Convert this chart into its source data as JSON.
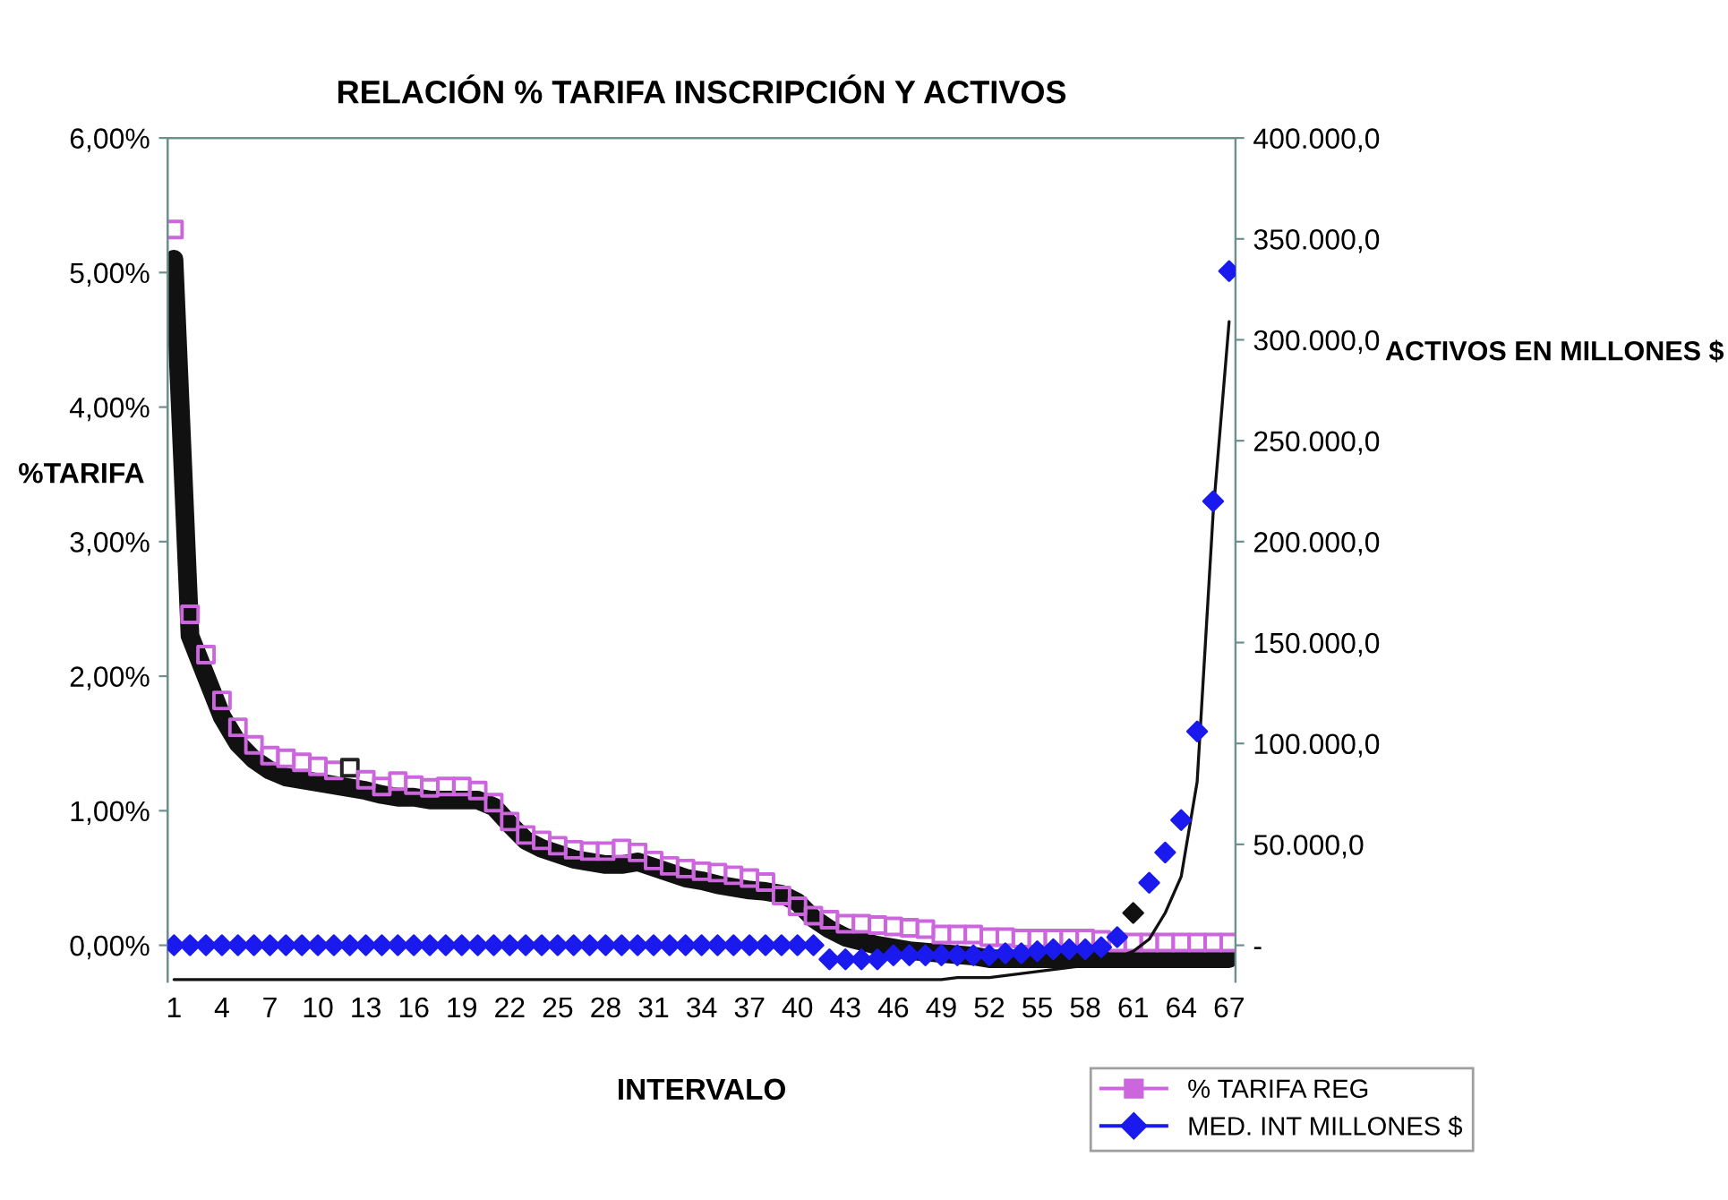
{
  "chart_data": {
    "type": "scatter",
    "title": "RELACIÓN % TARIFA INSCRIPCIÓN Y ACTIVOS",
    "xlabel": "INTERVALO",
    "ylabel": "%TARIFA",
    "y2label": "ACTIVOS EN MILLONES $",
    "categories": [
      "1",
      null,
      null,
      "4",
      null,
      null,
      "7",
      null,
      null,
      "10",
      null,
      null,
      "13",
      null,
      null,
      "16",
      null,
      null,
      "19",
      null,
      null,
      "22",
      null,
      null,
      "25",
      null,
      null,
      "28",
      null,
      null,
      "31",
      null,
      null,
      "34",
      null,
      null,
      "37",
      null,
      null,
      "40",
      null,
      null,
      "43",
      null,
      null,
      "46",
      null,
      null,
      "49",
      null,
      null,
      "52",
      null,
      null,
      "55",
      null,
      null,
      "58",
      null,
      null,
      "61",
      null,
      null,
      "64",
      null,
      null,
      "67"
    ],
    "ylim": [
      -0.27,
      6
    ],
    "yticks": [
      {
        "value": 0,
        "label": "0,00%"
      },
      {
        "value": 1,
        "label": "1,00%"
      },
      {
        "value": 2,
        "label": "2,00%"
      },
      {
        "value": 3,
        "label": "3,00%"
      },
      {
        "value": 4,
        "label": "4,00%"
      },
      {
        "value": 5,
        "label": "5,00%"
      },
      {
        "value": 6,
        "label": "6,00%"
      }
    ],
    "y2lim": [
      -18000,
      400000
    ],
    "y2ticks": [
      {
        "value": 0,
        "label": "-"
      },
      {
        "value": 50000,
        "label": "50.000,0"
      },
      {
        "value": 100000,
        "label": "100.000,0"
      },
      {
        "value": 150000,
        "label": "150.000,0"
      },
      {
        "value": 200000,
        "label": "200.000,0"
      },
      {
        "value": 250000,
        "label": "250.000,0"
      },
      {
        "value": 300000,
        "label": "300.000,0"
      },
      {
        "value": 350000,
        "label": "350.000,0"
      },
      {
        "value": 400000,
        "label": "400.000,0"
      }
    ],
    "grid": false,
    "legend": "bottom right",
    "series": [
      {
        "type": "line",
        "color": "#111111",
        "marker": "none",
        "line_style": "solid",
        "values": [
          5.1,
          2.3,
          2.0,
          1.7,
          1.5,
          1.38,
          1.3,
          1.25,
          1.23,
          1.21,
          1.19,
          1.17,
          1.15,
          1.12,
          1.1,
          1.1,
          1.08,
          1.08,
          1.08,
          1.08,
          1.03,
          0.9,
          0.78,
          0.72,
          0.68,
          0.64,
          0.62,
          0.6,
          0.6,
          0.62,
          0.58,
          0.54,
          0.5,
          0.48,
          0.45,
          0.43,
          0.41,
          0.4,
          0.38,
          0.32,
          0.2,
          0.12,
          0.06,
          0.03,
          0.0,
          -0.02,
          -0.04,
          -0.05,
          -0.06,
          -0.07,
          -0.08,
          -0.1,
          -0.1,
          -0.1,
          -0.1,
          -0.1,
          -0.1,
          -0.1,
          -0.1,
          -0.1,
          -0.1,
          -0.1,
          -0.1,
          -0.1,
          -0.1,
          -0.1,
          -0.1
        ]
      },
      {
        "type": "line",
        "axis": "y2",
        "color": "#111111",
        "marker": "none",
        "line_style": "solid",
        "values": [
          -17000,
          -17000,
          -17000,
          -17000,
          -17000,
          -17000,
          -17000,
          -17000,
          -17000,
          -17000,
          -17000,
          -17000,
          -17000,
          -17000,
          -17000,
          -17000,
          -17000,
          -17000,
          -17000,
          -17000,
          -17000,
          -17000,
          -17000,
          -17000,
          -17000,
          -17000,
          -17000,
          -17000,
          -17000,
          -17000,
          -17000,
          -17000,
          -17000,
          -17000,
          -17000,
          -17000,
          -17000,
          -17000,
          -17000,
          -17000,
          -17000,
          -17000,
          -17000,
          -17000,
          -17000,
          -17000,
          -17000,
          -17000,
          -17000,
          -16000,
          -16000,
          -16000,
          -15000,
          -14000,
          -13000,
          -12000,
          -11000,
          -10000,
          -8000,
          -6000,
          -3000,
          3000,
          16000,
          34000,
          81000,
          214000,
          309000
        ]
      },
      {
        "name": "% TARIFA REG",
        "color": "#cc66dd",
        "marker": "square",
        "colors": [
          "#cc66dd",
          "#cc66dd",
          "#cc66dd",
          "#cc66dd",
          "#cc66dd",
          "#cc66dd",
          "#cc66dd",
          "#cc66dd",
          "#cc66dd",
          "#cc66dd",
          "#cc66dd",
          "#222222",
          "#cc66dd",
          "#cc66dd",
          "#cc66dd",
          "#cc66dd",
          "#cc66dd",
          "#cc66dd",
          "#cc66dd",
          "#cc66dd",
          "#cc66dd",
          "#cc66dd",
          "#cc66dd",
          "#cc66dd",
          "#cc66dd",
          "#cc66dd",
          "#cc66dd",
          "#cc66dd",
          "#cc66dd",
          "#cc66dd",
          "#cc66dd",
          "#cc66dd",
          "#cc66dd",
          "#cc66dd",
          "#cc66dd",
          "#cc66dd",
          "#cc66dd",
          "#cc66dd",
          "#cc66dd",
          "#cc66dd",
          "#cc66dd",
          "#cc66dd",
          "#cc66dd",
          "#cc66dd",
          "#cc66dd",
          "#cc66dd",
          "#cc66dd",
          "#cc66dd",
          "#cc66dd",
          "#cc66dd",
          "#cc66dd",
          "#cc66dd",
          "#cc66dd",
          "#cc66dd",
          "#cc66dd",
          "#cc66dd",
          "#cc66dd",
          "#cc66dd",
          "#cc66dd",
          "#cc66dd",
          "#cc66dd",
          "#cc66dd",
          "#cc66dd",
          "#cc66dd",
          "#cc66dd",
          "#cc66dd",
          "#cc66dd"
        ],
        "values": [
          5.32,
          2.46,
          2.16,
          1.82,
          1.62,
          1.49,
          1.41,
          1.39,
          1.36,
          1.33,
          1.3,
          1.32,
          1.23,
          1.18,
          1.22,
          1.19,
          1.17,
          1.18,
          1.18,
          1.15,
          1.06,
          0.92,
          0.82,
          0.78,
          0.74,
          0.71,
          0.7,
          0.7,
          0.72,
          0.69,
          0.63,
          0.59,
          0.57,
          0.55,
          0.54,
          0.52,
          0.5,
          0.47,
          0.37,
          0.29,
          0.22,
          0.19,
          0.16,
          0.16,
          0.15,
          0.14,
          0.13,
          0.12,
          0.08,
          0.08,
          0.08,
          0.06,
          0.06,
          0.05,
          0.05,
          0.05,
          0.05,
          0.05,
          0.04,
          0.02,
          0.02,
          0.02,
          0.02,
          0.02,
          0.02,
          0.02,
          0.02
        ]
      },
      {
        "name": "MED. INT MILLONES $",
        "axis": "y2",
        "color": "#1a1aee",
        "marker": "diamond",
        "colors": [
          "#1a1aee",
          "#1a1aee",
          "#1a1aee",
          "#1a1aee",
          "#1a1aee",
          "#1a1aee",
          "#1a1aee",
          "#1a1aee",
          "#1a1aee",
          "#1a1aee",
          "#1a1aee",
          "#1a1aee",
          "#1a1aee",
          "#1a1aee",
          "#1a1aee",
          "#1a1aee",
          "#1a1aee",
          "#1a1aee",
          "#1a1aee",
          "#1a1aee",
          "#1a1aee",
          "#1a1aee",
          "#1a1aee",
          "#1a1aee",
          "#1a1aee",
          "#1a1aee",
          "#1a1aee",
          "#1a1aee",
          "#1a1aee",
          "#1a1aee",
          "#1a1aee",
          "#1a1aee",
          "#1a1aee",
          "#1a1aee",
          "#1a1aee",
          "#1a1aee",
          "#1a1aee",
          "#1a1aee",
          "#1a1aee",
          "#1a1aee",
          "#1a1aee",
          "#1a1aee",
          "#1a1aee",
          "#1a1aee",
          "#1a1aee",
          "#1a1aee",
          "#1a1aee",
          "#1a1aee",
          "#1a1aee",
          "#1a1aee",
          "#1a1aee",
          "#1a1aee",
          "#1a1aee",
          "#1a1aee",
          "#1a1aee",
          "#1a1aee",
          "#1a1aee",
          "#1a1aee",
          "#1a1aee",
          "#1a1aee",
          "#111111",
          "#1a1aee",
          "#1a1aee",
          "#1a1aee",
          "#1a1aee",
          "#1a1aee",
          "#1a1aee"
        ],
        "values": [
          0,
          0,
          0,
          0,
          0,
          0,
          0,
          0,
          0,
          0,
          0,
          0,
          0,
          0,
          0,
          0,
          0,
          0,
          0,
          0,
          0,
          0,
          0,
          0,
          0,
          0,
          0,
          0,
          0,
          0,
          0,
          0,
          0,
          0,
          0,
          0,
          0,
          0,
          0,
          0,
          0,
          -7000,
          -7000,
          -7000,
          -7000,
          -5000,
          -5000,
          -5000,
          -5000,
          -5000,
          -5000,
          -5000,
          -4000,
          -4000,
          -3000,
          -2000,
          -2000,
          -2000,
          -1000,
          4000,
          16000,
          31000,
          46000,
          62000,
          106000,
          220000,
          334000
        ]
      }
    ]
  }
}
